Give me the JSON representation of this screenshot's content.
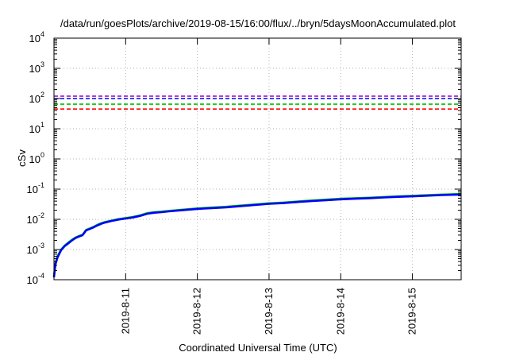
{
  "chart_data": {
    "type": "line",
    "title": "/data/run/goesPlots/archive/2019-08-15/16:00/flux/../bryn/5daysMoonAccumulated.plot",
    "xlabel": "Coordinated Universal Time (UTC)",
    "ylabel": "cSv",
    "y_scale": "log",
    "ylim": [
      0.0001,
      10000
    ],
    "xlim": [
      0,
      5.68
    ],
    "grid": true,
    "y_ticks": [
      {
        "value": 0.0001,
        "base": "10",
        "exp": "-4"
      },
      {
        "value": 0.001,
        "base": "10",
        "exp": "-3"
      },
      {
        "value": 0.01,
        "base": "10",
        "exp": "-2"
      },
      {
        "value": 0.1,
        "base": "10",
        "exp": "-1"
      },
      {
        "value": 1,
        "base": "10",
        "exp": "0"
      },
      {
        "value": 10,
        "base": "10",
        "exp": "1"
      },
      {
        "value": 100,
        "base": "10",
        "exp": "2"
      },
      {
        "value": 1000,
        "base": "10",
        "exp": "3"
      },
      {
        "value": 10000,
        "base": "10",
        "exp": "4"
      }
    ],
    "x_ticks": [
      {
        "value": 1,
        "label": "2019-8-11"
      },
      {
        "value": 2,
        "label": "2019-8-12"
      },
      {
        "value": 3,
        "label": "2019-8-13"
      },
      {
        "value": 4,
        "label": "2019-8-14"
      },
      {
        "value": 5,
        "label": "2019-8-15"
      }
    ],
    "thresholds": [
      {
        "y": 120,
        "color": "#9400d3"
      },
      {
        "y": 100,
        "color": "#0000ff"
      },
      {
        "y": 65,
        "color": "#00c000"
      },
      {
        "y": 45,
        "color": "#ff0000"
      }
    ],
    "series": [
      {
        "color": "#00c000",
        "x": [
          0.0,
          0.02,
          0.05,
          0.1,
          0.15,
          0.2,
          0.25,
          0.3,
          0.35,
          0.4,
          0.45,
          0.5,
          0.55,
          0.6,
          0.65,
          0.7,
          0.8,
          0.9,
          1.0,
          1.1,
          1.2,
          1.3,
          1.4,
          1.5,
          1.6,
          1.8,
          2.0,
          2.2,
          2.4,
          2.6,
          2.8,
          3.0,
          3.2,
          3.4,
          3.6,
          3.8,
          4.0,
          4.2,
          4.4,
          4.6,
          4.8,
          5.0,
          5.2,
          5.4,
          5.68
        ],
        "y": [
          0.00013,
          0.00035,
          0.0006,
          0.001,
          0.00135,
          0.0017,
          0.0021,
          0.0025,
          0.0028,
          0.0031,
          0.0045,
          0.005,
          0.0056,
          0.0065,
          0.0073,
          0.008,
          0.0091,
          0.0102,
          0.011,
          0.012,
          0.0135,
          0.016,
          0.0172,
          0.018,
          0.019,
          0.021,
          0.023,
          0.0245,
          0.026,
          0.0285,
          0.031,
          0.034,
          0.036,
          0.039,
          0.042,
          0.045,
          0.048,
          0.05,
          0.052,
          0.055,
          0.058,
          0.06,
          0.063,
          0.066,
          0.069
        ]
      },
      {
        "color": "#0000ff",
        "x": [
          0.0,
          0.02,
          0.05,
          0.1,
          0.15,
          0.2,
          0.25,
          0.3,
          0.35,
          0.4,
          0.45,
          0.5,
          0.55,
          0.6,
          0.65,
          0.7,
          0.8,
          0.9,
          1.0,
          1.1,
          1.2,
          1.3,
          1.4,
          1.5,
          1.6,
          1.8,
          2.0,
          2.2,
          2.4,
          2.6,
          2.8,
          3.0,
          3.2,
          3.4,
          3.6,
          3.8,
          4.0,
          4.2,
          4.4,
          4.6,
          4.8,
          5.0,
          5.2,
          5.4,
          5.68
        ],
        "y": [
          0.00012,
          0.00032,
          0.00055,
          0.00095,
          0.0013,
          0.0016,
          0.002,
          0.0024,
          0.0027,
          0.003,
          0.0043,
          0.0048,
          0.0054,
          0.0062,
          0.007,
          0.0077,
          0.0088,
          0.0098,
          0.0106,
          0.0115,
          0.013,
          0.0153,
          0.0165,
          0.0173,
          0.0183,
          0.0202,
          0.0221,
          0.0235,
          0.025,
          0.0274,
          0.0298,
          0.0326,
          0.0345,
          0.0374,
          0.0403,
          0.0432,
          0.0461,
          0.048,
          0.05,
          0.0528,
          0.0557,
          0.0576,
          0.0605,
          0.0634,
          0.0662
        ]
      }
    ]
  }
}
